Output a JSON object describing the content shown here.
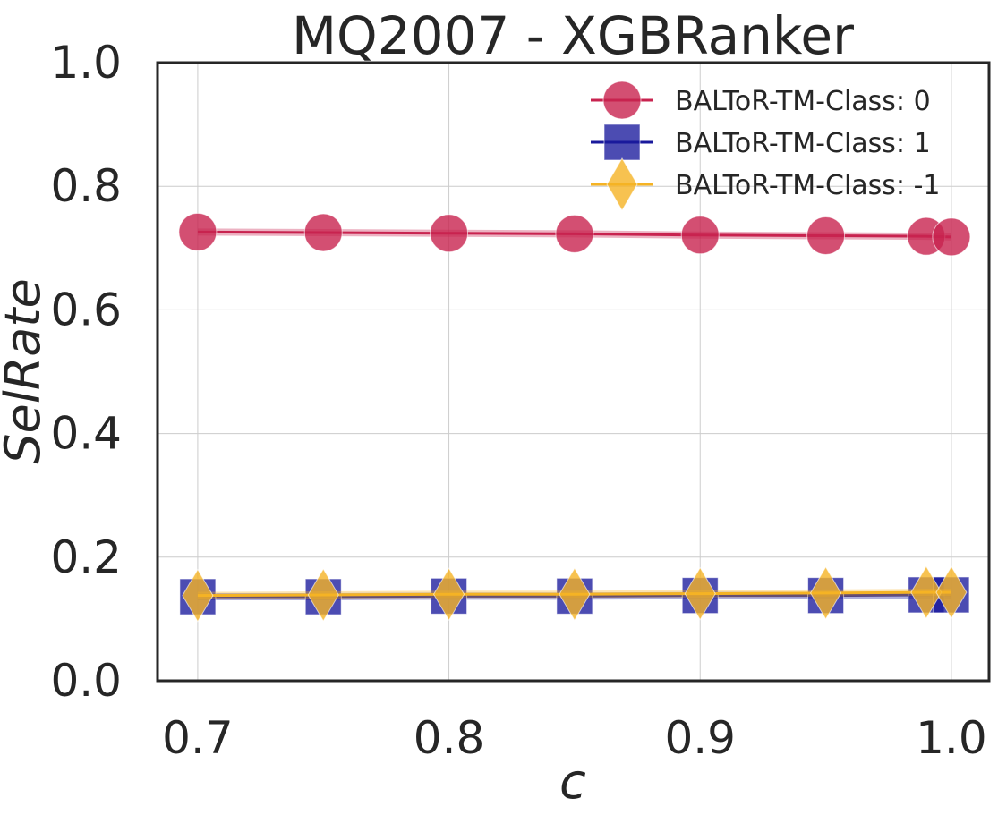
{
  "chart_data": {
    "type": "line",
    "title": "MQ2007 - XGBRanker",
    "xlabel": "c",
    "ylabel": "SelRate",
    "xlim": [
      0.684,
      1.015
    ],
    "ylim": [
      0.0,
      1.0
    ],
    "xticks": [
      0.7,
      0.8,
      0.9,
      1.0
    ],
    "xtick_labels": [
      "0.7",
      "0.8",
      "0.9",
      "1.0"
    ],
    "yticks": [
      0.0,
      0.2,
      0.4,
      0.6,
      0.8,
      1.0
    ],
    "ytick_labels": [
      "0.0",
      "0.2",
      "0.4",
      "0.6",
      "0.8",
      "1.0"
    ],
    "grid": true,
    "legend_position": "top-right",
    "x": [
      0.7,
      0.75,
      0.8,
      0.85,
      0.9,
      0.95,
      0.99,
      1.0
    ],
    "series": [
      {
        "name": "BALToR-TM-Class: 0",
        "marker": "circle",
        "color": "#c8234f",
        "values": [
          0.726,
          0.725,
          0.724,
          0.723,
          0.721,
          0.72,
          0.719,
          0.718
        ]
      },
      {
        "name": "BALToR-TM-Class: 1",
        "marker": "square",
        "color": "#1a1a9c",
        "values": [
          0.136,
          0.136,
          0.137,
          0.137,
          0.138,
          0.138,
          0.139,
          0.139
        ]
      },
      {
        "name": "BALToR-TM-Class: -1",
        "marker": "diamond",
        "color": "#f5b324",
        "values": [
          0.138,
          0.139,
          0.14,
          0.14,
          0.141,
          0.142,
          0.143,
          0.143
        ]
      }
    ]
  }
}
